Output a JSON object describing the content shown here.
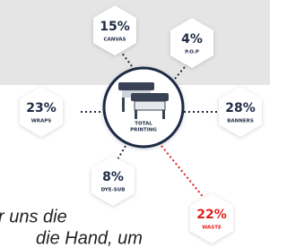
{
  "center": {
    "line1": "TOTAL",
    "line2": "PRINTING"
  },
  "nodes": [
    {
      "value": "15%",
      "label": "CANVAS"
    },
    {
      "value": "4%",
      "label": "P.O.P"
    },
    {
      "value": "23%",
      "label": "WRAPS"
    },
    {
      "value": "28%",
      "label": "BANNERS"
    },
    {
      "value": "8%",
      "label": "DYE-SUB"
    },
    {
      "value": "22%",
      "label": "WASTE"
    }
  ],
  "body_text": [
    "r uns die",
    "die Hand, um"
  ]
}
